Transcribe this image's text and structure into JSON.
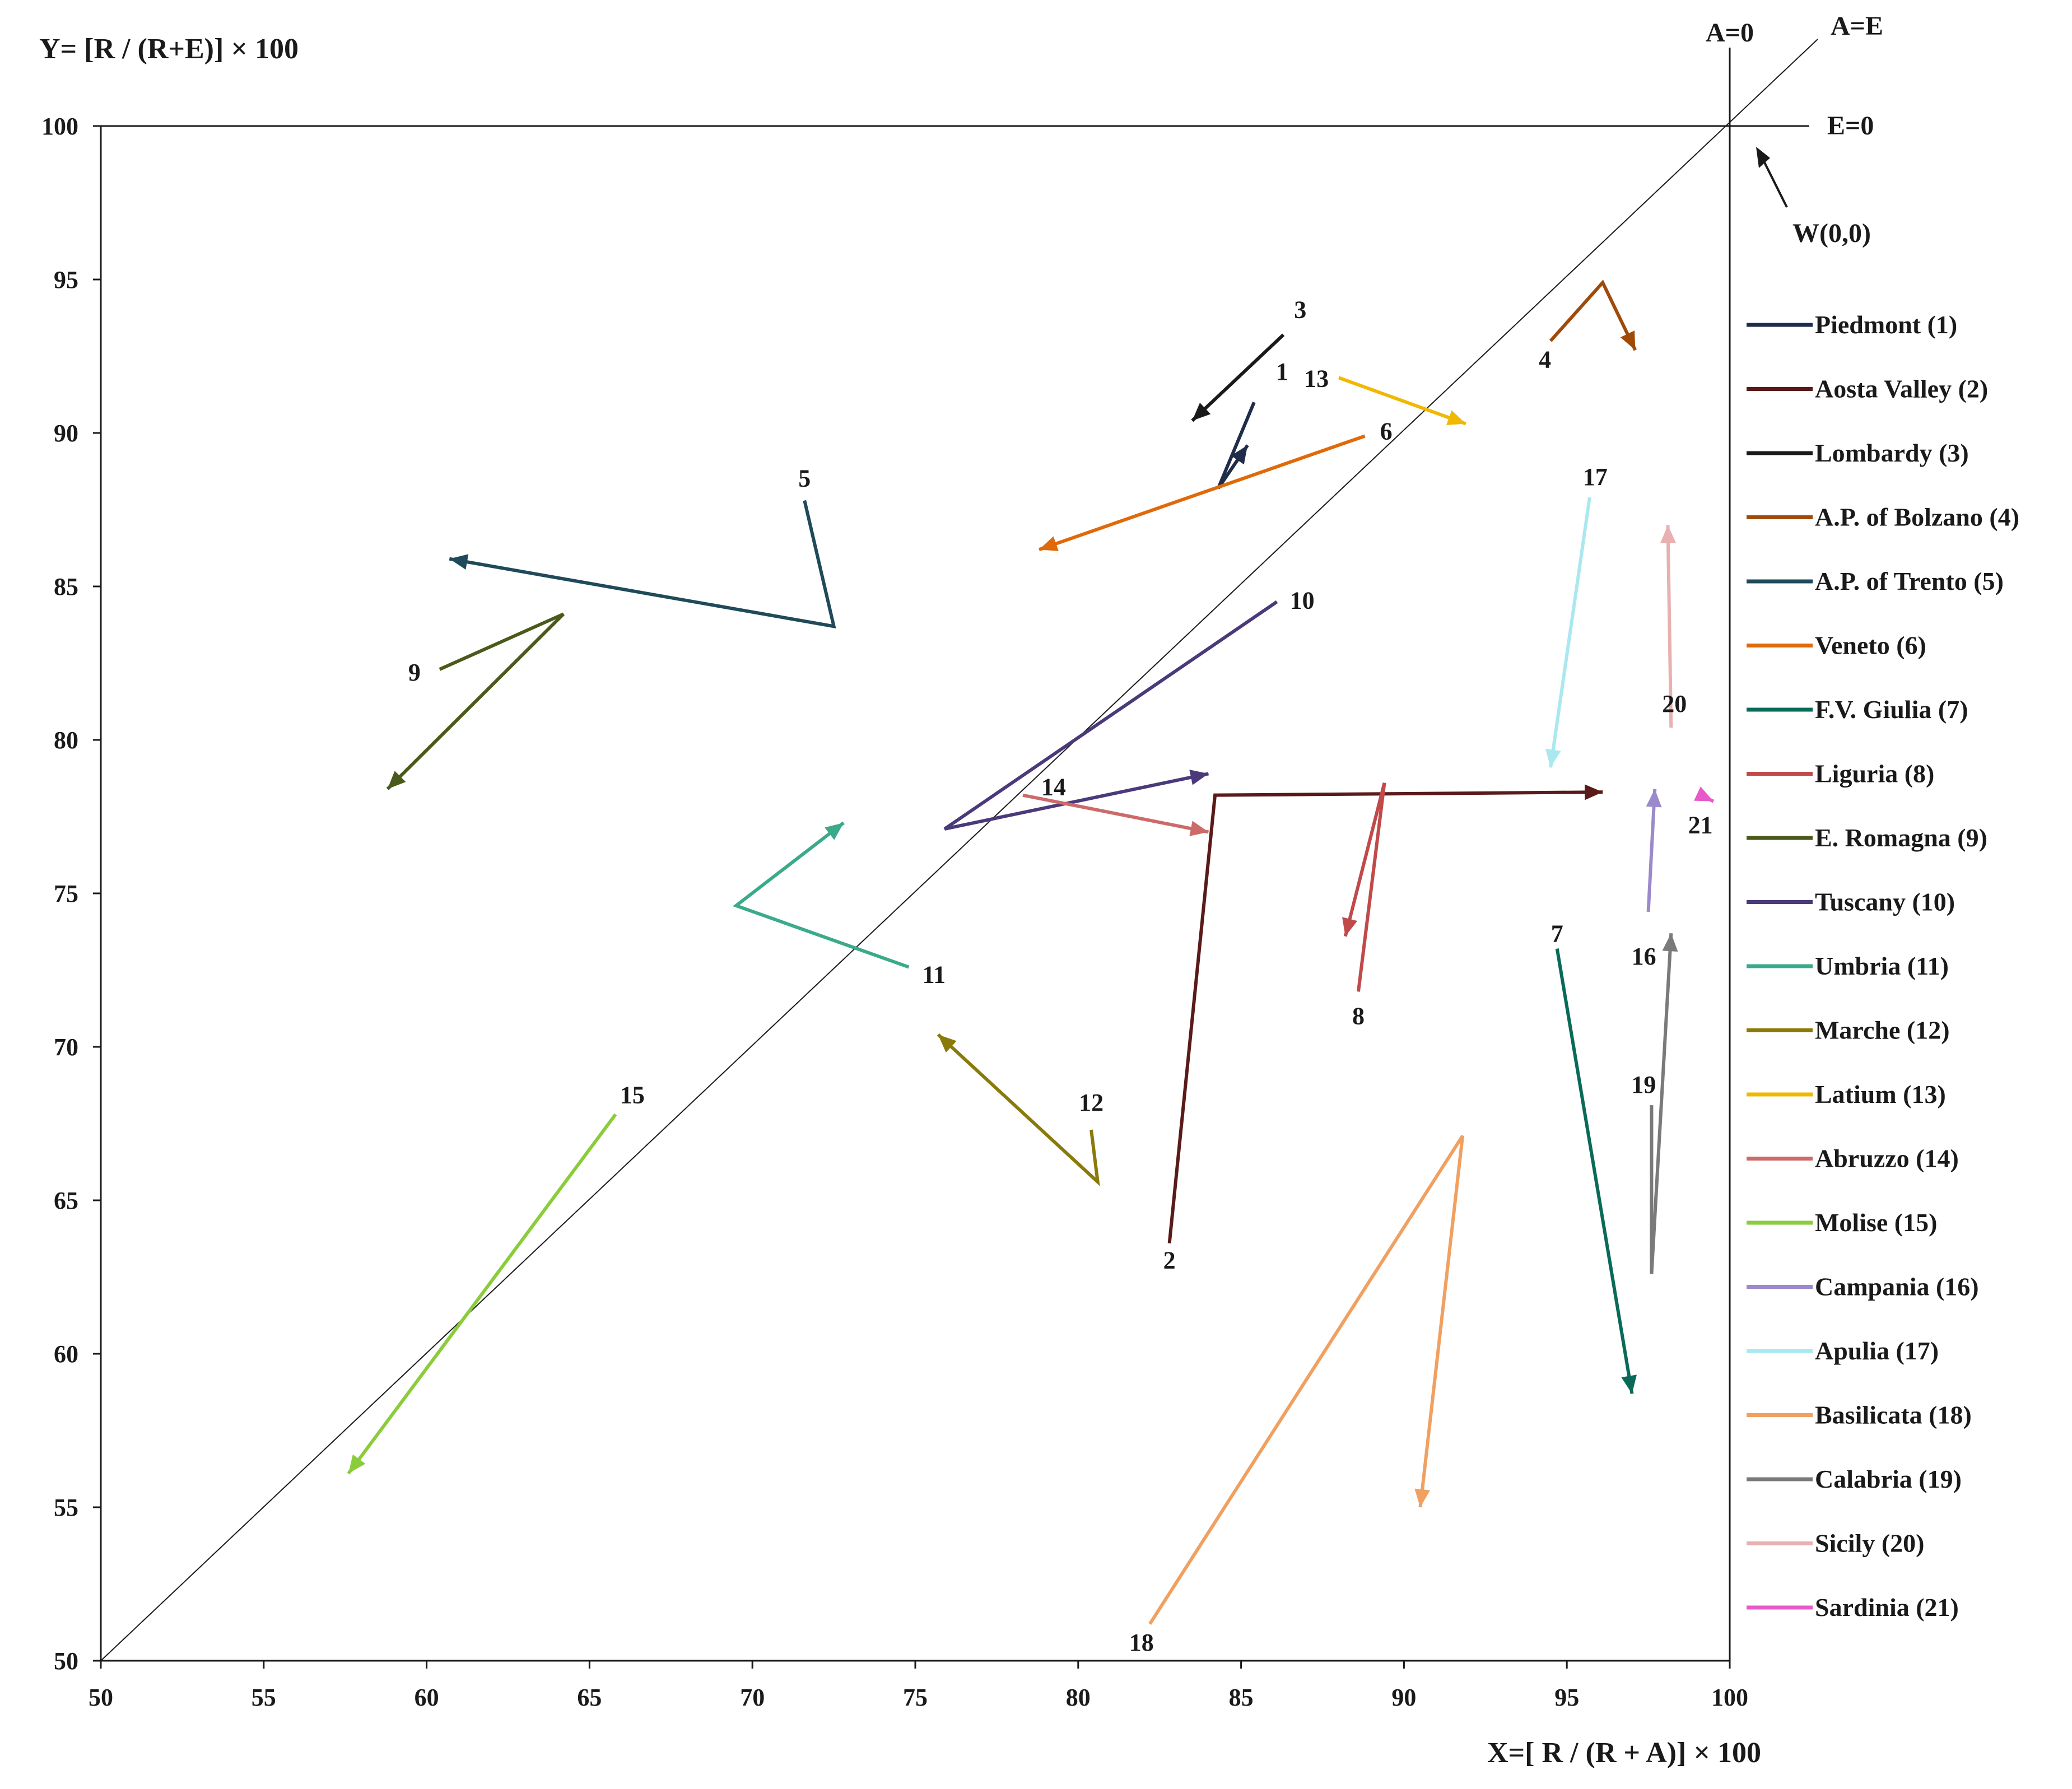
{
  "chart_data": {
    "type": "line",
    "ylabel": "Y= [R / (R+E)] × 100",
    "xlabel": "X=[ R / (R + A)] × 100",
    "xlim": [
      50,
      100
    ],
    "ylim": [
      50,
      100
    ],
    "xticks": [
      50,
      55,
      60,
      65,
      70,
      75,
      80,
      85,
      90,
      95,
      100
    ],
    "yticks": [
      50,
      55,
      60,
      65,
      70,
      75,
      80,
      85,
      90,
      95,
      100
    ],
    "reference_lines": {
      "diagonal_label": "A=E",
      "vertical_label": "A=0",
      "horizontal_label": "E=0",
      "origin_label": "W(0,0)"
    },
    "legend_position": "right",
    "series": [
      {
        "id": "1",
        "name": "Piedmont (1)",
        "color": "#1f2d4a",
        "points": [
          [
            85.4,
            91.0
          ],
          [
            84.3,
            88.2
          ],
          [
            85.2,
            89.6
          ]
        ]
      },
      {
        "id": "2",
        "name": "Aosta Valley (2)",
        "color": "#5a1a1a",
        "points": [
          [
            82.8,
            63.6
          ],
          [
            84.2,
            78.2
          ],
          [
            96.1,
            78.3
          ]
        ]
      },
      {
        "id": "3",
        "name": "Lombardy (3)",
        "color": "#1a1a1a",
        "points": [
          [
            86.3,
            93.2
          ],
          [
            83.5,
            90.4
          ]
        ]
      },
      {
        "id": "4",
        "name": "A.P. of Bolzano (4)",
        "color": "#a04a0a",
        "points": [
          [
            94.5,
            93.0
          ],
          [
            96.1,
            94.9
          ],
          [
            97.1,
            92.7
          ]
        ]
      },
      {
        "id": "5",
        "name": "A.P. of Trento (5)",
        "color": "#1f4a5a",
        "points": [
          [
            71.6,
            87.8
          ],
          [
            72.5,
            83.7
          ],
          [
            60.7,
            85.9
          ]
        ]
      },
      {
        "id": "6",
        "name": "Veneto (6)",
        "color": "#e0690a",
        "points": [
          [
            88.8,
            89.9
          ],
          [
            78.8,
            86.2
          ]
        ]
      },
      {
        "id": "7",
        "name": "F.V. Giulia (7)",
        "color": "#0a6a5a",
        "points": [
          [
            94.7,
            73.2
          ],
          [
            97.0,
            58.7
          ]
        ]
      },
      {
        "id": "8",
        "name": "Liguria (8)",
        "color": "#c04a4a",
        "points": [
          [
            88.6,
            71.8
          ],
          [
            89.4,
            78.6
          ],
          [
            88.2,
            73.6
          ]
        ]
      },
      {
        "id": "9",
        "name": "E. Romagna (9)",
        "color": "#4a5a1a",
        "points": [
          [
            60.4,
            82.3
          ],
          [
            64.2,
            84.1
          ],
          [
            58.8,
            78.4
          ]
        ]
      },
      {
        "id": "10",
        "name": "Tuscany (10)",
        "color": "#4a3a7a",
        "points": [
          [
            86.1,
            84.5
          ],
          [
            75.9,
            77.1
          ],
          [
            84.0,
            78.9
          ]
        ]
      },
      {
        "id": "11",
        "name": "Umbria (11)",
        "color": "#3aaa8a",
        "points": [
          [
            74.8,
            72.6
          ],
          [
            69.5,
            74.6
          ],
          [
            72.8,
            77.3
          ]
        ]
      },
      {
        "id": "12",
        "name": "Marche (12)",
        "color": "#8a7a0a",
        "points": [
          [
            80.4,
            67.3
          ],
          [
            80.6,
            65.6
          ],
          [
            75.7,
            70.4
          ]
        ]
      },
      {
        "id": "13",
        "name": "Latium (13)",
        "color": "#f0b800",
        "points": [
          [
            88.0,
            91.8
          ],
          [
            91.9,
            90.3
          ]
        ]
      },
      {
        "id": "14",
        "name": "Abruzzo (14)",
        "color": "#cc6a6a",
        "points": [
          [
            78.3,
            78.2
          ],
          [
            84.0,
            77.0
          ]
        ]
      },
      {
        "id": "15",
        "name": "Molise (15)",
        "color": "#8acc3a",
        "points": [
          [
            65.8,
            67.8
          ],
          [
            57.6,
            56.1
          ]
        ]
      },
      {
        "id": "16",
        "name": "Campania (16)",
        "color": "#9a8acc",
        "points": [
          [
            97.5,
            74.4
          ],
          [
            97.7,
            78.4
          ]
        ]
      },
      {
        "id": "17",
        "name": "Apulia (17)",
        "color": "#aae8f0",
        "points": [
          [
            95.7,
            87.9
          ],
          [
            94.5,
            79.1
          ]
        ]
      },
      {
        "id": "18",
        "name": "Basilicata (18)",
        "color": "#f0a060",
        "points": [
          [
            82.2,
            51.2
          ],
          [
            91.8,
            67.1
          ],
          [
            90.5,
            55.0
          ]
        ]
      },
      {
        "id": "19",
        "name": "Calabria (19)",
        "color": "#7a7a7a",
        "points": [
          [
            97.6,
            68.1
          ],
          [
            97.6,
            62.6
          ],
          [
            98.2,
            73.7
          ]
        ]
      },
      {
        "id": "20",
        "name": "Sicily (20)",
        "color": "#e8b0b0",
        "points": [
          [
            98.2,
            80.4
          ],
          [
            98.1,
            87.0
          ]
        ]
      },
      {
        "id": "21",
        "name": "Sardinia (21)",
        "color": "#e85aca",
        "points": [
          [
            99.1,
            78.2
          ],
          [
            99.5,
            78.0
          ]
        ]
      }
    ]
  }
}
